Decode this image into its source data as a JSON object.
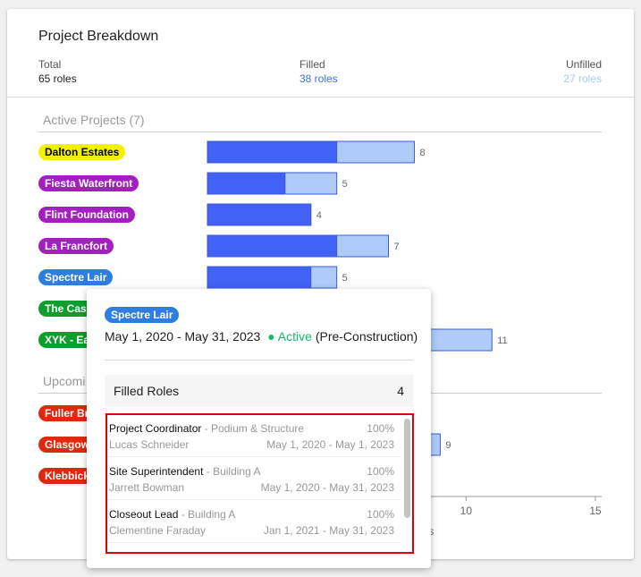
{
  "header": {
    "title": "Project Breakdown",
    "summary": [
      {
        "label": "Total",
        "value": "65 roles"
      },
      {
        "label": "Filled",
        "value": "38 roles"
      },
      {
        "label": "Unfilled",
        "value": "27 roles"
      }
    ]
  },
  "chart_data": {
    "type": "bar",
    "orientation": "horizontal",
    "stacked": true,
    "colors": {
      "filled": "#4262f5",
      "unfilled": "#aecbfa",
      "border": "#3b5bdb"
    },
    "groups": [
      {
        "title": "Active Projects (7)",
        "projects": [
          {
            "name": "Dalton Estates",
            "color": "#f2f200",
            "text_color": "#000000",
            "total": 8,
            "filled": 5
          },
          {
            "name": "Fiesta Waterfront",
            "color": "#a31fbf",
            "text_color": "#ffffff",
            "total": 5,
            "filled": 3
          },
          {
            "name": "Flint Foundation",
            "color": "#a31fbf",
            "text_color": "#ffffff",
            "total": 4,
            "filled": 4
          },
          {
            "name": "La Francfort",
            "color": "#a31fbf",
            "text_color": "#ffffff",
            "total": 7,
            "filled": 5
          },
          {
            "name": "Spectre Lair",
            "color": "#2f7de1",
            "text_color": "#ffffff",
            "total": 5,
            "filled": 4
          },
          {
            "name": "The Cas",
            "color": "#0f9d2d",
            "text_color": "#ffffff"
          },
          {
            "name": "XYK - Ea",
            "color": "#0f9d2d",
            "text_color": "#ffffff",
            "total": 11
          }
        ]
      },
      {
        "title": "Upcomi",
        "projects": [
          {
            "name": "Fuller Br",
            "color": "#e0280f",
            "text_color": "#ffffff"
          },
          {
            "name": "Glasgow",
            "color": "#e0280f",
            "text_color": "#ffffff",
            "total": 9
          },
          {
            "name": "Klebbick",
            "color": "#e0280f",
            "text_color": "#ffffff"
          }
        ]
      }
    ],
    "xlim": [
      0,
      15
    ],
    "xticks": [
      10,
      15
    ],
    "xlabel": "les"
  },
  "popup": {
    "project": "Spectre Lair",
    "project_color": "#2f7de1",
    "dates": "May 1, 2020 - May 31, 2023",
    "status": "● Active",
    "phase": "(Pre-Construction)",
    "filled_label": "Filled Roles",
    "filled_count": "4",
    "roles": [
      {
        "role": "Project Coordinator",
        "area": " - Podium & Structure",
        "allocation": "100%",
        "person": "Lucas Schneider",
        "dates": "May 1, 2020 - May 1, 2023"
      },
      {
        "role": "Site Superintendent",
        "area": " - Building A",
        "allocation": "100%",
        "person": "Jarrett Bowman",
        "dates": "May 1, 2020 - May 31, 2023"
      },
      {
        "role": "Closeout Lead",
        "area": " - Building A",
        "allocation": "100%",
        "person": "Clementine Faraday",
        "dates": "Jan 1, 2021 - May 31, 2023"
      }
    ]
  }
}
